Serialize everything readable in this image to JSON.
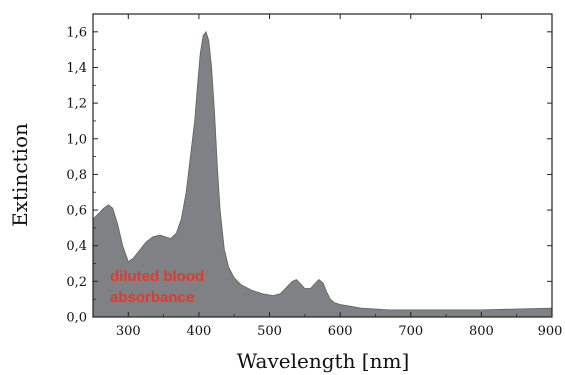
{
  "chart_data": {
    "type": "area",
    "xlabel": "Wavelength [nm]",
    "ylabel": "Extinction",
    "xlim": [
      250,
      900
    ],
    "ylim": [
      0,
      1.7
    ],
    "x_ticks": [
      300,
      400,
      500,
      600,
      700,
      800,
      900
    ],
    "y_ticks": [
      "0,0",
      "0,2",
      "0,4",
      "0,6",
      "0,8",
      "1,0",
      "1,2",
      "1,4",
      "1,6"
    ],
    "y_tick_values": [
      0,
      0.2,
      0.4,
      0.6,
      0.8,
      1.0,
      1.2,
      1.4,
      1.6
    ],
    "grid": false,
    "fill_color": "#7f8184",
    "annotation": {
      "lines": [
        "diluted blood",
        "absorbance"
      ],
      "color": "#e03a2f"
    },
    "series": [
      {
        "x": [
          250,
          258,
          265,
          272,
          278,
          285,
          292,
          300,
          307,
          315,
          325,
          335,
          345,
          352,
          360,
          368,
          375,
          382,
          388,
          394,
          398,
          402,
          406,
          410,
          414,
          418,
          422,
          426,
          430,
          436,
          442,
          450,
          460,
          475,
          490,
          505,
          515,
          525,
          532,
          538,
          543,
          550,
          558,
          565,
          570,
          576,
          581,
          586,
          592,
          600,
          615,
          630,
          650,
          670,
          700,
          750,
          800,
          850,
          900
        ],
        "y": [
          0.55,
          0.58,
          0.61,
          0.63,
          0.61,
          0.52,
          0.4,
          0.31,
          0.33,
          0.37,
          0.42,
          0.45,
          0.46,
          0.45,
          0.44,
          0.47,
          0.55,
          0.7,
          0.9,
          1.1,
          1.3,
          1.48,
          1.58,
          1.6,
          1.55,
          1.4,
          1.15,
          0.85,
          0.6,
          0.38,
          0.28,
          0.22,
          0.18,
          0.15,
          0.13,
          0.12,
          0.13,
          0.17,
          0.2,
          0.21,
          0.19,
          0.16,
          0.16,
          0.19,
          0.21,
          0.19,
          0.14,
          0.1,
          0.08,
          0.07,
          0.06,
          0.05,
          0.045,
          0.04,
          0.04,
          0.04,
          0.04,
          0.045,
          0.05
        ]
      }
    ]
  }
}
